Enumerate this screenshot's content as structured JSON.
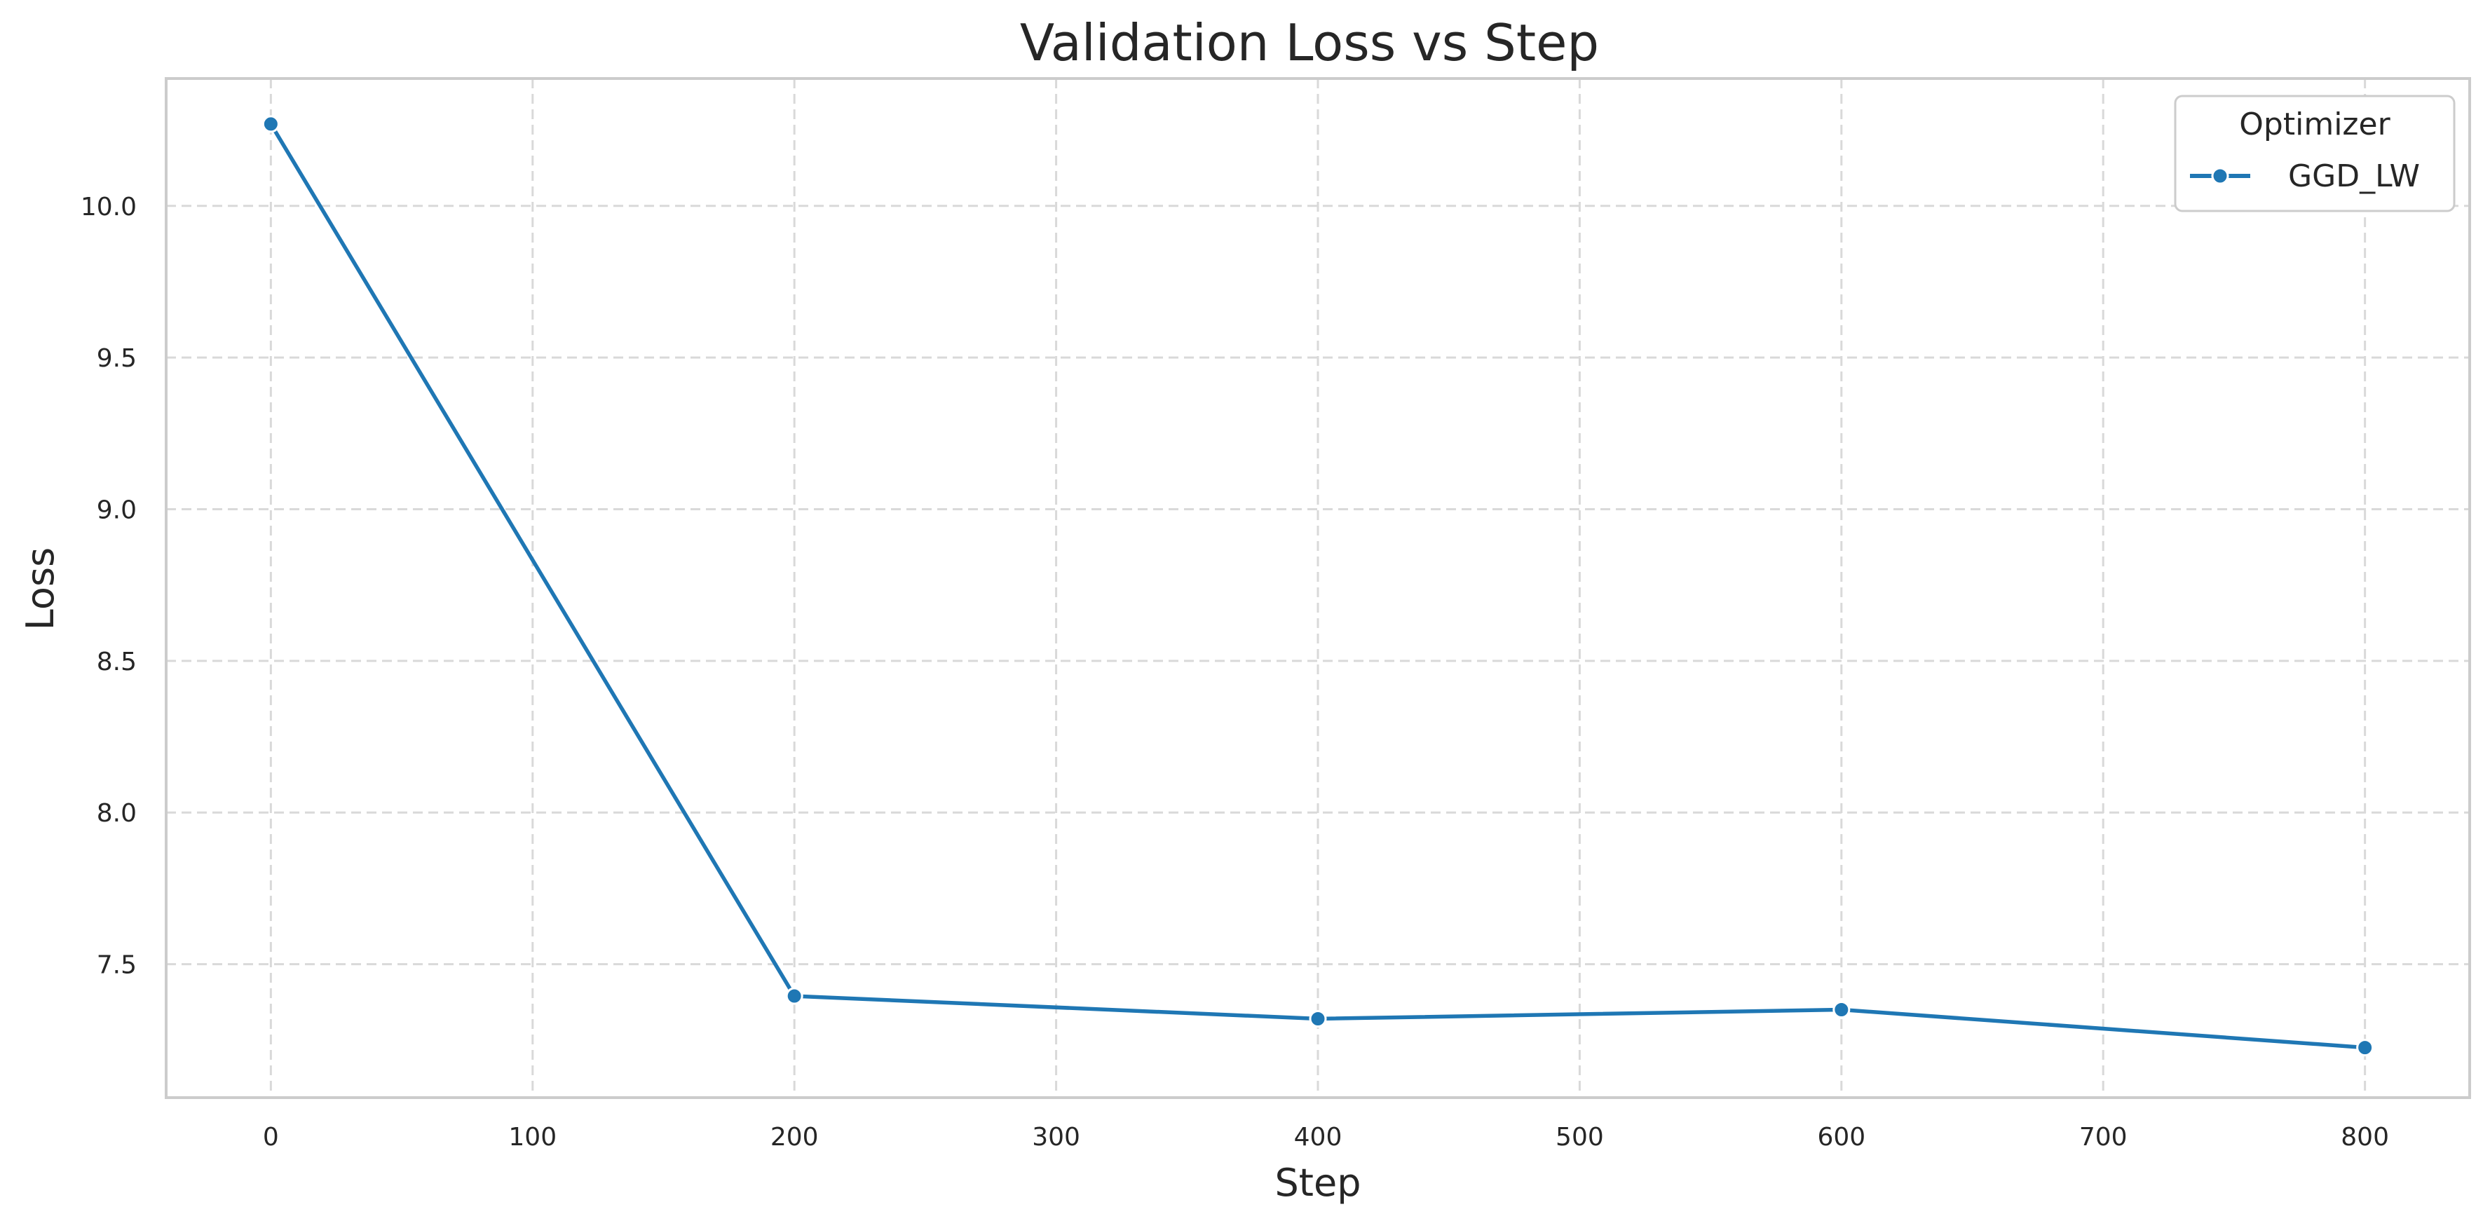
{
  "chart_data": {
    "type": "line",
    "title": "Validation Loss vs Step",
    "xlabel": "Step",
    "ylabel": "Loss",
    "xlim": [
      -40,
      840
    ],
    "ylim": [
      7.06,
      10.42
    ],
    "xticks": [
      0,
      100,
      200,
      300,
      400,
      500,
      600,
      700,
      800
    ],
    "yticks": [
      7.5,
      8.0,
      8.5,
      9.0,
      9.5,
      10.0
    ],
    "xtick_labels": [
      "0",
      "100",
      "200",
      "300",
      "400",
      "500",
      "600",
      "700",
      "800"
    ],
    "ytick_labels": [
      "7.5",
      "8.0",
      "8.5",
      "9.0",
      "9.5",
      "10.0"
    ],
    "grid": true,
    "legend": {
      "title": "Optimizer",
      "placement": "top-right"
    },
    "series": [
      {
        "name": "GGD_LW",
        "color": "#1f77b4",
        "marker": "circle",
        "x": [
          0,
          200,
          400,
          600,
          800
        ],
        "y": [
          10.27,
          7.395,
          7.32,
          7.35,
          7.225
        ]
      }
    ]
  }
}
